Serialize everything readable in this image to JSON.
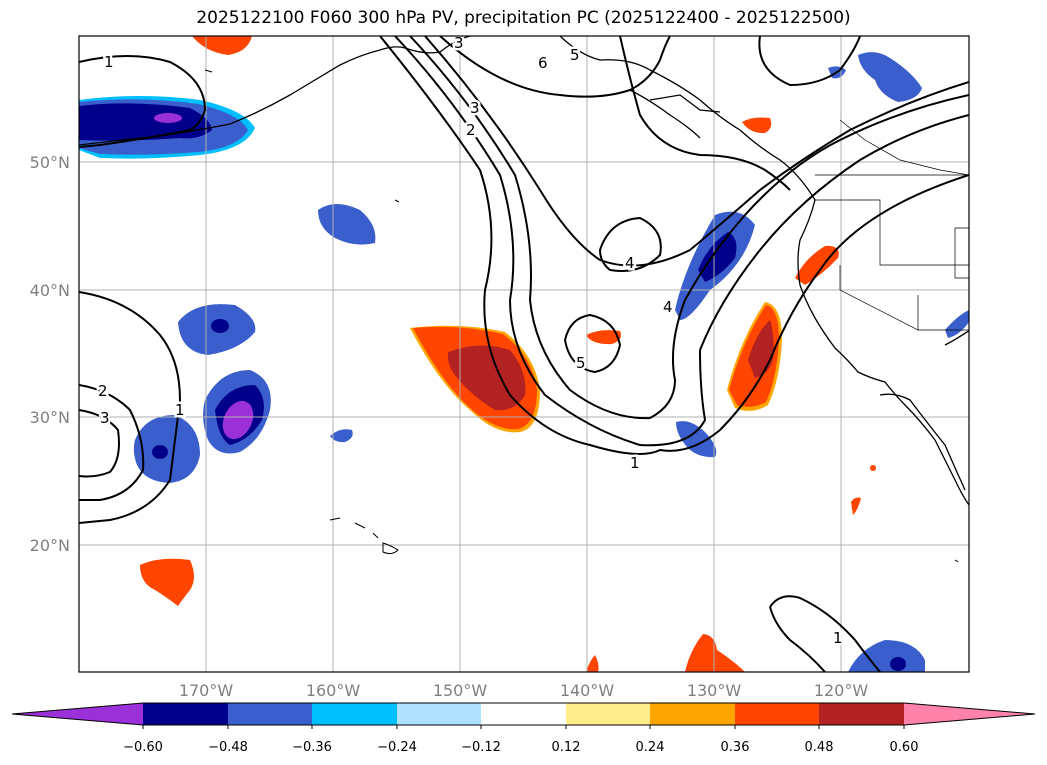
{
  "title": "2025122100 F060 300 hPa PV, precipitation PC (2025122400 - 2025122500)",
  "map": {
    "lat_labels": [
      "50°N",
      "40°N",
      "30°N",
      "20°N"
    ],
    "lon_labels": [
      "170°W",
      "160°W",
      "150°W",
      "140°W",
      "130°W",
      "120°W"
    ],
    "contour_labels": [
      {
        "text": "1",
        "id": "1a"
      },
      {
        "text": "3",
        "id": "3a"
      },
      {
        "text": "6",
        "id": "6a"
      },
      {
        "text": "5",
        "id": "5a"
      },
      {
        "text": "2",
        "id": "2a"
      },
      {
        "text": "3",
        "id": "3b"
      },
      {
        "text": "4",
        "id": "4a"
      },
      {
        "text": "4",
        "id": "4b"
      },
      {
        "text": "5",
        "id": "5b"
      },
      {
        "text": "1",
        "id": "1b"
      },
      {
        "text": "2",
        "id": "2b"
      },
      {
        "text": "3",
        "id": "3c"
      },
      {
        "text": "1",
        "id": "1c"
      },
      {
        "text": "1",
        "id": "1d"
      }
    ]
  },
  "colorbar": {
    "ticks": [
      "−0.60",
      "−0.48",
      "−0.36",
      "−0.24",
      "−0.12",
      "0.12",
      "0.24",
      "0.36",
      "0.48",
      "0.60"
    ],
    "colors": [
      "#9b30d9",
      "#00008b",
      "#3a5fcd",
      "#00bfff",
      "#b0e2ff",
      "#ffffff",
      "#ffec8b",
      "#ffa500",
      "#ff4500",
      "#b22222",
      "#ff82ab"
    ]
  },
  "colors": {
    "grid": "#b0b0b0",
    "contour": "#000000"
  }
}
